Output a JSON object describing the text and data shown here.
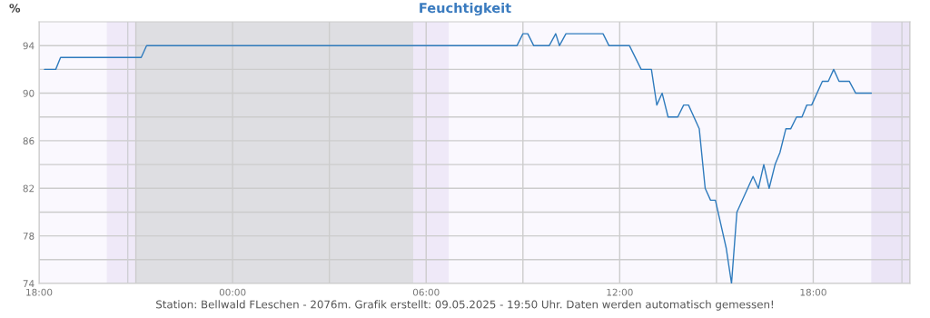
{
  "chart_data": {
    "type": "line",
    "title": "Feuchtigkeit",
    "ylabel": "%",
    "annotations": [
      "Station: Bellwald FLeschen - 2076m. Grafik erstellt: 09.05.2025 - 19:50 Uhr. Daten werden automatisch gemessen!"
    ],
    "x": [
      "2025-05-08T18:10",
      "2025-05-08T18:31",
      "2025-05-08T18:40",
      "2025-05-08T21:10",
      "2025-05-08T21:20",
      "2025-05-09T08:49",
      "2025-05-09T09:00",
      "2025-05-09T09:09",
      "2025-05-09T09:20",
      "2025-05-09T09:49",
      "2025-05-09T10:01",
      "2025-05-09T10:08",
      "2025-05-09T10:20",
      "2025-05-09T11:29",
      "2025-05-09T11:40",
      "2025-05-09T12:18",
      "2025-05-09T12:40",
      "2025-05-09T12:59",
      "2025-05-09T13:09",
      "2025-05-09T13:19",
      "2025-05-09T13:30",
      "2025-05-09T13:48",
      "2025-05-09T13:59",
      "2025-05-09T14:08",
      "2025-05-09T14:28",
      "2025-05-09T14:39",
      "2025-05-09T14:49",
      "2025-05-09T14:58",
      "2025-05-09T15:18",
      "2025-05-09T15:28",
      "2025-05-09T15:38",
      "2025-05-09T16:08",
      "2025-05-09T16:18",
      "2025-05-09T16:28",
      "2025-05-09T16:38",
      "2025-05-09T16:49",
      "2025-05-09T16:58",
      "2025-05-09T17:09",
      "2025-05-09T17:18",
      "2025-05-09T17:29",
      "2025-05-09T17:39",
      "2025-05-09T17:48",
      "2025-05-09T17:57",
      "2025-05-09T18:17",
      "2025-05-09T18:28",
      "2025-05-09T18:38",
      "2025-05-09T18:48",
      "2025-05-09T19:07",
      "2025-05-09T19:19",
      "2025-05-09T19:48"
    ],
    "series": [
      {
        "color": "#2f7bbd",
        "values": [
          92,
          92,
          93,
          93,
          94,
          94,
          95,
          95,
          94,
          94,
          95,
          94,
          95,
          95,
          94,
          94,
          92,
          92,
          89,
          90,
          88,
          88,
          89,
          89,
          87,
          82,
          81,
          81,
          77,
          74,
          80,
          83,
          82,
          84,
          82,
          84,
          85,
          87,
          87,
          88,
          88,
          89,
          89,
          91,
          91,
          92,
          91,
          91,
          90,
          90
        ]
      }
    ],
    "xlim": [
      "2025-05-08T18:00",
      "2025-05-09T21:00"
    ],
    "xticks": [
      {
        "value": "2025-05-08T18:00",
        "label": "18:00"
      },
      {
        "value": "2025-05-08T21:00",
        "label": null
      },
      {
        "value": "2025-05-09T00:00",
        "label": "00:00"
      },
      {
        "value": "2025-05-09T03:00",
        "label": null
      },
      {
        "value": "2025-05-09T06:00",
        "label": "06:00"
      },
      {
        "value": "2025-05-09T09:00",
        "label": null
      },
      {
        "value": "2025-05-09T12:00",
        "label": "12:00"
      },
      {
        "value": "2025-05-09T15:00",
        "label": null
      },
      {
        "value": "2025-05-09T18:00",
        "label": "18:00"
      },
      {
        "value": "2025-05-09T21:00",
        "label": null
      }
    ],
    "ylim": [
      74,
      96
    ],
    "yticks": [
      74,
      {
        "value": 76,
        "label": null
      },
      78,
      {
        "value": 80,
        "label": null
      },
      82,
      {
        "value": 84,
        "label": null
      },
      86,
      {
        "value": 88,
        "label": null
      },
      90,
      {
        "value": 92,
        "label": null
      },
      94
    ],
    "bands": [
      {
        "axis": "x",
        "from": "2025-05-08T20:06",
        "to": "2025-05-08T21:00",
        "color": "#efe9f8"
      },
      {
        "axis": "x",
        "from": "2025-05-08T21:00",
        "to": "2025-05-09T05:36",
        "color": "#dedee2"
      },
      {
        "axis": "x",
        "from": "2025-05-09T05:36",
        "to": "2025-05-09T06:42",
        "color": "#efe9f8"
      },
      {
        "axis": "x",
        "from": "2025-05-09T19:48",
        "to": "2025-05-09T21:00",
        "color": "#ebe5f6"
      }
    ],
    "ref_lines": [
      {
        "axis": "x",
        "value": "2025-05-08T20:45",
        "color": "#cfcfd4"
      },
      {
        "axis": "x",
        "value": "2025-05-09T20:45",
        "color": "#cfcfd4"
      }
    ],
    "grid": true,
    "legend": false,
    "marker": "none",
    "line_style": "solid"
  }
}
